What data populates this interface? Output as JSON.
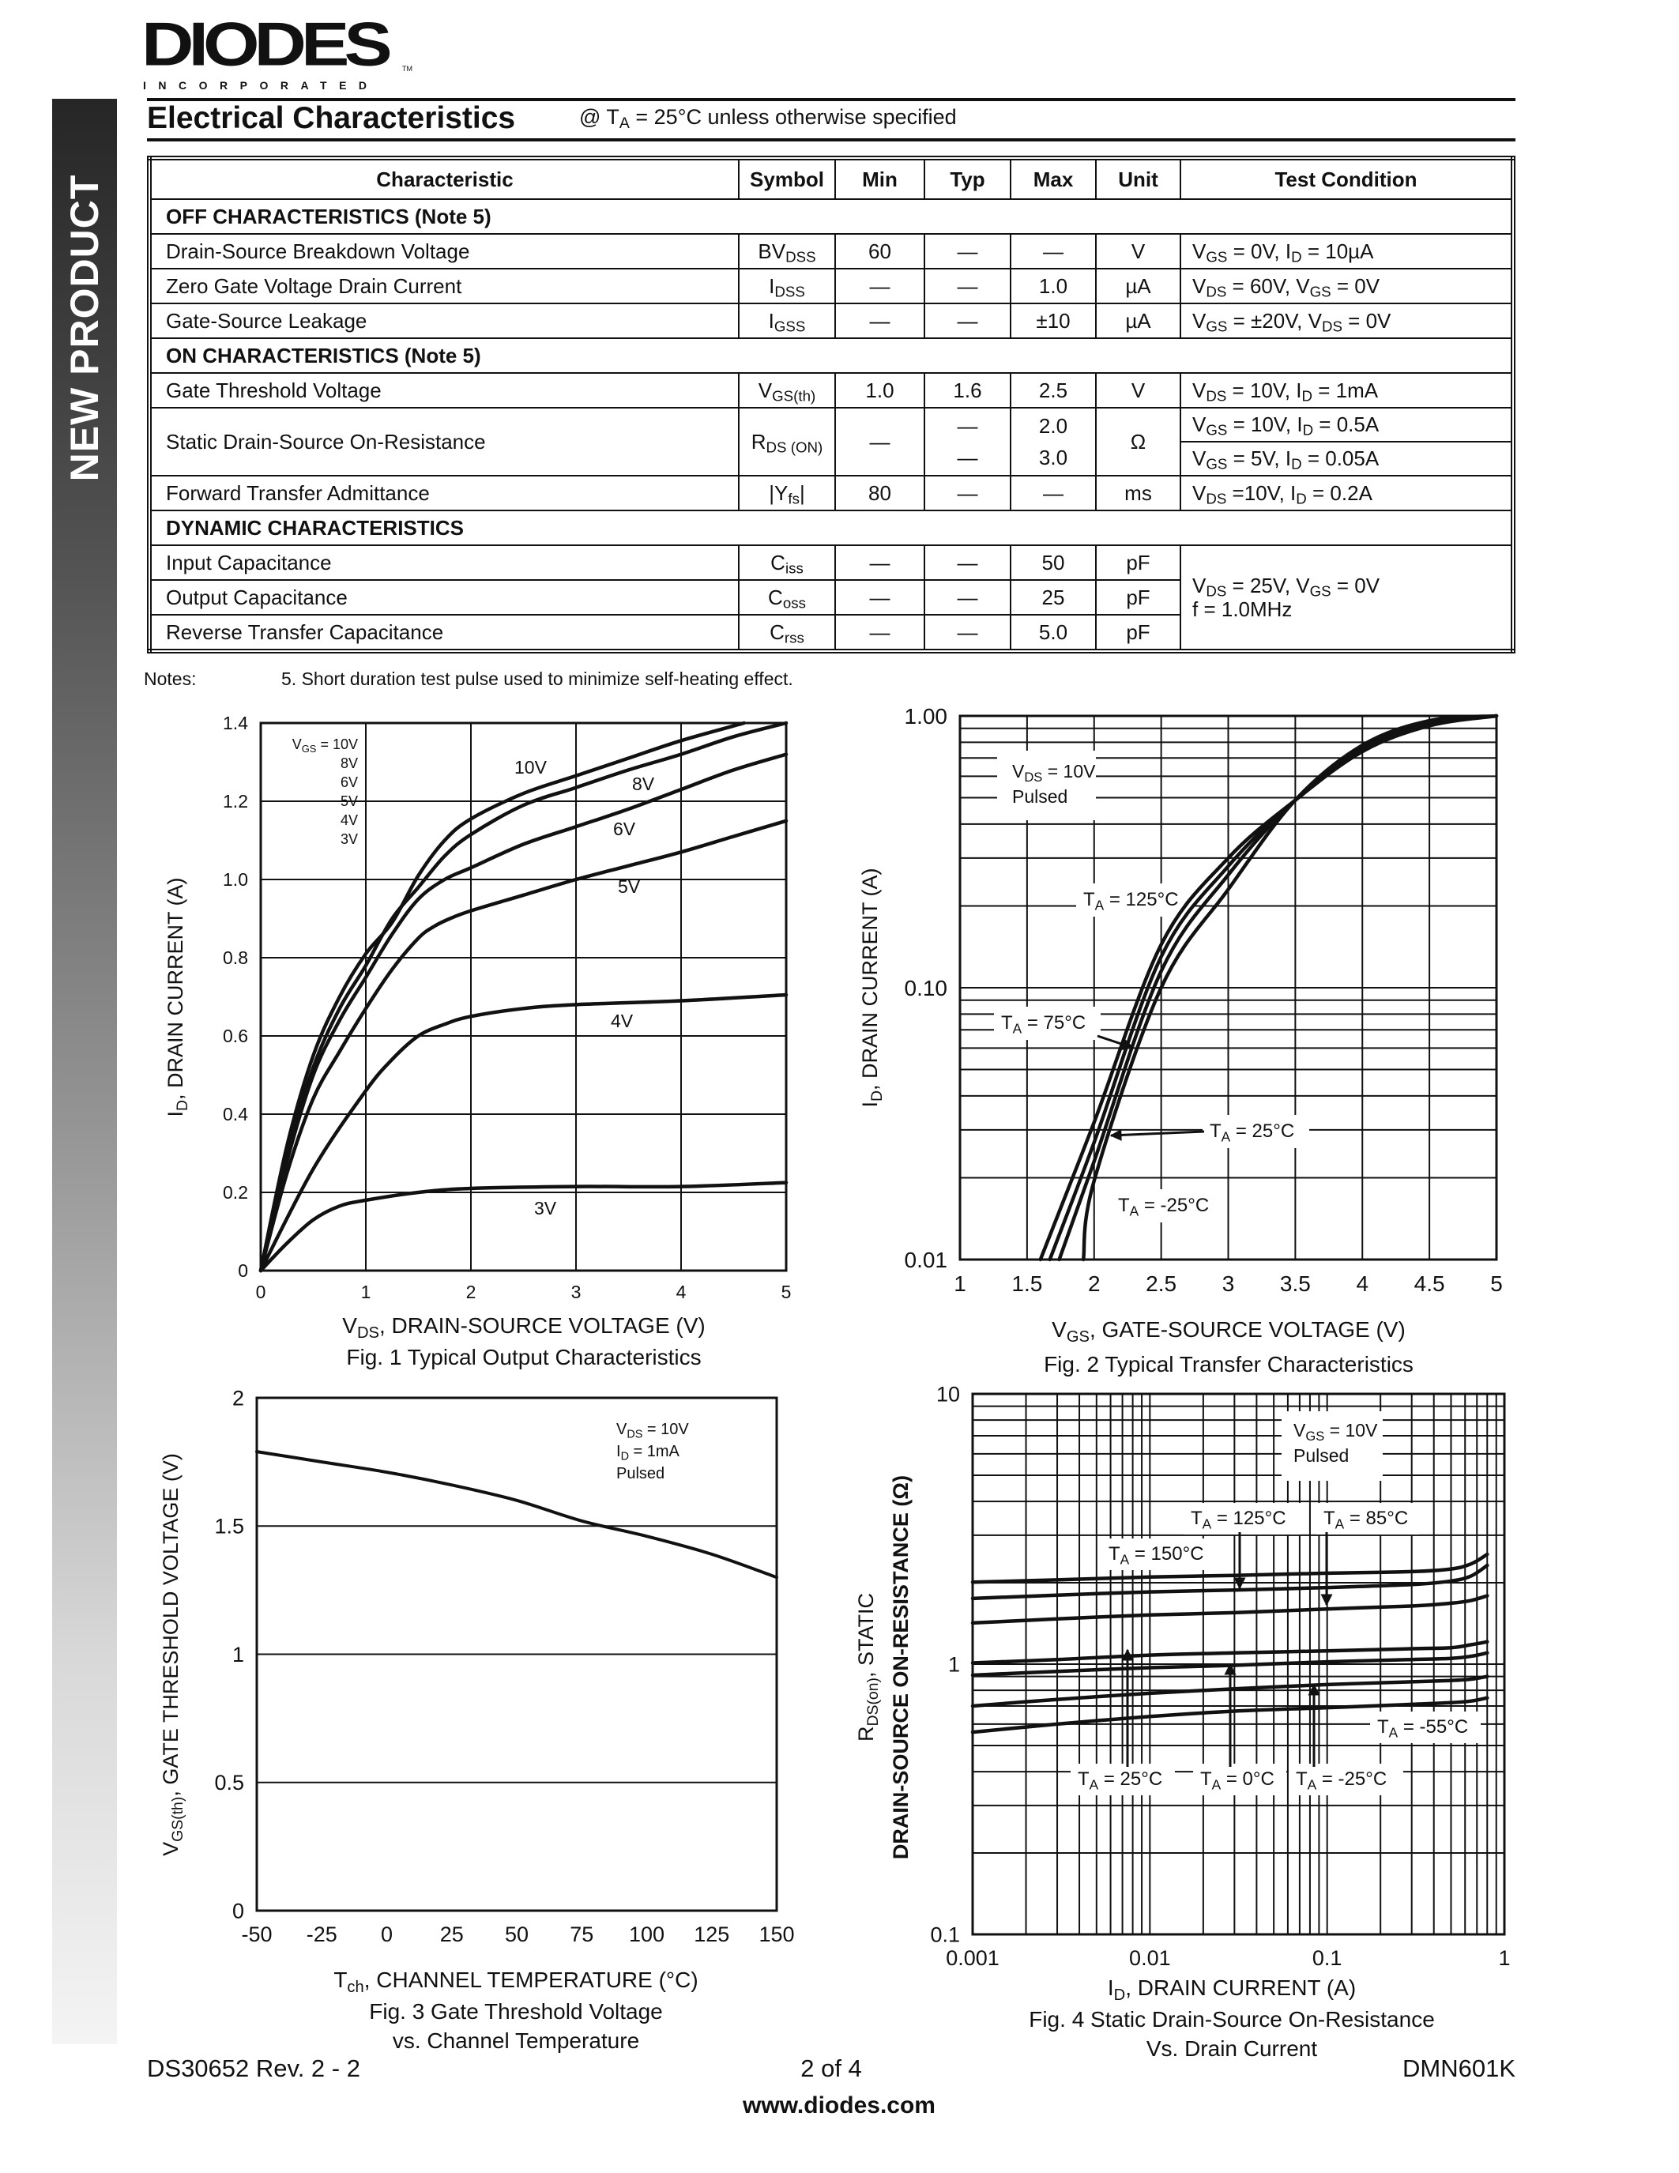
{
  "logo": {
    "name": "DIODES",
    "sub": "INCORPORATED",
    "tm": "TM"
  },
  "sidebar": {
    "label": "NEW PRODUCT"
  },
  "header": {
    "title": "Electrical Characteristics",
    "subtitle": [
      "@ T",
      {
        "sub": "A"
      },
      " = 25°C unless otherwise specified"
    ]
  },
  "table": {
    "columns": [
      "Characteristic",
      "Symbol",
      "Min",
      "Typ",
      "Max",
      "Unit",
      "Test Condition"
    ],
    "rows": [
      {
        "section": "OFF CHARACTERISTICS (Note 5)"
      },
      {
        "characteristic": "Drain-Source Breakdown Voltage",
        "symbol": [
          "BV",
          {
            "sub": "DSS"
          }
        ],
        "min": "60",
        "typ": "—",
        "max": "—",
        "unit": "V",
        "condition": [
          [
            "V",
            {
              "sub": "GS"
            },
            " = 0V, I",
            {
              "sub": "D"
            },
            " = 10µA"
          ]
        ]
      },
      {
        "characteristic": "Zero Gate Voltage Drain Current",
        "symbol": [
          "I",
          {
            "sub": "DSS"
          }
        ],
        "min": "—",
        "typ": "—",
        "max": "1.0",
        "unit": "µA",
        "condition": [
          [
            "V",
            {
              "sub": "DS"
            },
            " = 60V, V",
            {
              "sub": "GS"
            },
            " = 0V"
          ]
        ]
      },
      {
        "characteristic": "Gate-Source Leakage",
        "symbol": [
          "I",
          {
            "sub": "GSS"
          }
        ],
        "min": "—",
        "typ": "—",
        "max": "±10",
        "unit": "µA",
        "condition": [
          [
            "V",
            {
              "sub": "GS"
            },
            " = ±20V, V",
            {
              "sub": "DS"
            },
            " = 0V"
          ]
        ]
      },
      {
        "section": "ON CHARACTERISTICS (Note 5)"
      },
      {
        "characteristic": "Gate Threshold Voltage",
        "symbol": [
          "V",
          {
            "sub": "GS(th)"
          }
        ],
        "min": "1.0",
        "typ": "1.6",
        "max": "2.5",
        "unit": "V",
        "condition": [
          [
            "V",
            {
              "sub": "DS"
            },
            " = 10V, I",
            {
              "sub": "D"
            },
            " = 1mA"
          ]
        ]
      },
      {
        "characteristic": "Static Drain-Source On-Resistance",
        "symbol": [
          "R",
          {
            "sub": "DS (ON)"
          }
        ],
        "min": "—",
        "typ": [
          "—",
          "—"
        ],
        "max": [
          "2.0",
          "3.0"
        ],
        "unit": "Ω",
        "condition_divided": true,
        "condition": [
          [
            "V",
            {
              "sub": "GS"
            },
            " = 10V, I",
            {
              "sub": "D"
            },
            " = 0.5A"
          ],
          [
            "V",
            {
              "sub": "GS"
            },
            " = 5V, I",
            {
              "sub": "D"
            },
            " = 0.05A"
          ]
        ]
      },
      {
        "characteristic": "Forward Transfer Admittance",
        "symbol": [
          "|Y",
          {
            "sub": "fs"
          },
          "|"
        ],
        "min": "80",
        "typ": "—",
        "max": "—",
        "unit": "ms",
        "condition": [
          [
            "V",
            {
              "sub": "DS"
            },
            " =10V, I",
            {
              "sub": "D"
            },
            " = 0.2A"
          ]
        ]
      },
      {
        "section": "DYNAMIC CHARACTERISTICS"
      },
      {
        "characteristic": "Input Capacitance",
        "symbol": [
          "C",
          {
            "sub": "iss"
          }
        ],
        "min": "—",
        "typ": "—",
        "max": "50",
        "unit": "pF",
        "condition_rowspan": 3,
        "condition": [
          [
            "V",
            {
              "sub": "DS"
            },
            " = 25V, V",
            {
              "sub": "GS"
            },
            " = 0V"
          ],
          [
            "f = 1.0MHz"
          ]
        ]
      },
      {
        "characteristic": "Output Capacitance",
        "symbol": [
          "C",
          {
            "sub": "oss"
          }
        ],
        "min": "—",
        "typ": "—",
        "max": "25",
        "unit": "pF"
      },
      {
        "characteristic": "Reverse Transfer Capacitance",
        "symbol": [
          "C",
          {
            "sub": "rss"
          }
        ],
        "min": "—",
        "typ": "—",
        "max": "5.0",
        "unit": "pF"
      }
    ]
  },
  "notes": {
    "label": "Notes:",
    "items": [
      "5.  Short duration test pulse used to minimize self-heating effect."
    ]
  },
  "chart_data": [
    {
      "type": "line",
      "title": [
        "Fig. 1  Typical Output Characteristics"
      ],
      "xlabel": [
        "V",
        {
          "sub": "DS"
        },
        ", DRAIN-SOURCE VOLTAGE (V)"
      ],
      "ylabel": [
        [
          "I",
          {
            "sub": "D"
          },
          ", DRAIN CURRENT (A)"
        ]
      ],
      "xscale": "linear",
      "yscale": "linear",
      "xlim": [
        0,
        5
      ],
      "ylim": [
        0,
        1.4
      ],
      "grid": true,
      "xticks": [
        "0",
        "1",
        "2",
        "3",
        "4",
        "5"
      ],
      "yticks": [
        "0",
        "0.2",
        "0.4",
        "0.6",
        "0.8",
        "1.0",
        "1.2",
        "1.4"
      ],
      "legend": [
        [
          "V",
          {
            "sub": "GS"
          },
          " = 10V"
        ],
        [
          "8V"
        ],
        [
          "6V"
        ],
        [
          "5V"
        ],
        [
          "4V"
        ],
        [
          "3V"
        ]
      ],
      "legend_position": "top-left",
      "series": [
        {
          "name": "10V",
          "x": [
            0,
            0.25,
            0.5,
            0.75,
            1,
            1.25,
            1.5,
            1.75,
            2,
            2.5,
            3,
            3.5,
            4,
            4.6
          ],
          "y": [
            0,
            0.32,
            0.55,
            0.7,
            0.81,
            0.89,
            1.01,
            1.1,
            1.155,
            1.22,
            1.265,
            1.31,
            1.355,
            1.4
          ]
        },
        {
          "name": "8V",
          "x": [
            0,
            0.25,
            0.5,
            0.75,
            1,
            1.25,
            1.5,
            1.75,
            2,
            2.5,
            3,
            3.5,
            4,
            4.5,
            5
          ],
          "y": [
            0,
            0.3,
            0.52,
            0.67,
            0.78,
            0.9,
            0.98,
            1.06,
            1.115,
            1.19,
            1.235,
            1.28,
            1.32,
            1.365,
            1.4
          ]
        },
        {
          "name": "6V",
          "x": [
            0,
            0.25,
            0.5,
            0.75,
            1,
            1.25,
            1.5,
            1.75,
            2,
            2.5,
            3,
            3.5,
            4,
            4.5,
            5
          ],
          "y": [
            0,
            0.28,
            0.5,
            0.64,
            0.75,
            0.86,
            0.95,
            1.0,
            1.03,
            1.09,
            1.135,
            1.18,
            1.23,
            1.28,
            1.32
          ]
        },
        {
          "name": "5V",
          "x": [
            0,
            0.25,
            0.5,
            0.75,
            1,
            1.25,
            1.5,
            1.65,
            1.8,
            2,
            2.5,
            3,
            3.5,
            4,
            4.5,
            5
          ],
          "y": [
            0,
            0.25,
            0.44,
            0.56,
            0.67,
            0.77,
            0.85,
            0.88,
            0.9,
            0.92,
            0.96,
            1.0,
            1.035,
            1.07,
            1.11,
            1.15
          ]
        },
        {
          "name": "4V",
          "x": [
            0,
            0.5,
            1,
            1.25,
            1.5,
            1.75,
            2,
            2.5,
            3,
            4,
            5
          ],
          "y": [
            0,
            0.26,
            0.46,
            0.54,
            0.6,
            0.63,
            0.65,
            0.67,
            0.68,
            0.69,
            0.705
          ]
        },
        {
          "name": "3V",
          "x": [
            0,
            0.25,
            0.5,
            0.75,
            1,
            1.5,
            2,
            3,
            4,
            5
          ],
          "y": [
            0,
            0.07,
            0.13,
            0.165,
            0.18,
            0.2,
            0.21,
            0.215,
            0.215,
            0.225
          ]
        }
      ]
    },
    {
      "type": "line",
      "title": [
        "Fig. 2  Typical Transfer Characteristics"
      ],
      "xlabel": [
        "V",
        {
          "sub": "GS"
        },
        ", GATE-SOURCE VOLTAGE (V)"
      ],
      "ylabel": [
        [
          "I",
          {
            "sub": "D"
          },
          ", DRAIN CURRENT (A)"
        ]
      ],
      "xscale": "linear",
      "yscale": "log",
      "xlim": [
        1,
        5
      ],
      "ylim": [
        0.01,
        1
      ],
      "grid": true,
      "xticks": [
        "1",
        "1.5",
        "2",
        "2.5",
        "3",
        "3.5",
        "4",
        "4.5",
        "5"
      ],
      "yticks": [
        "0.01",
        "0.10",
        "1.00"
      ],
      "annotations": [
        [
          [
            "V",
            {
              "sub": "DS"
            },
            " = 10V"
          ],
          [
            "Pulsed"
          ]
        ],
        [
          [
            "T",
            {
              "sub": "A"
            },
            " = 125°C"
          ]
        ],
        [
          [
            "T",
            {
              "sub": "A"
            },
            " = 75°C"
          ]
        ],
        [
          [
            "T",
            {
              "sub": "A"
            },
            " = 25°C"
          ]
        ],
        [
          [
            "T",
            {
              "sub": "A"
            },
            " = -25°C"
          ]
        ]
      ],
      "series": [
        {
          "name": "TA = 125°C",
          "x": [
            1.6,
            2,
            2.5,
            3,
            3.5,
            4,
            4.5,
            5
          ],
          "y": [
            0.01,
            0.032,
            0.144,
            0.3,
            0.49,
            0.74,
            0.93,
            1.0
          ]
        },
        {
          "name": "TA = 75°C",
          "x": [
            1.67,
            2,
            2.5,
            3,
            3.5,
            4,
            4.5,
            5
          ],
          "y": [
            0.01,
            0.027,
            0.13,
            0.28,
            0.49,
            0.74,
            0.92,
            1.0
          ]
        },
        {
          "name": "TA = 25°C",
          "x": [
            1.74,
            2,
            2.5,
            3,
            3.5,
            4,
            4.5,
            5
          ],
          "y": [
            0.01,
            0.023,
            0.115,
            0.26,
            0.49,
            0.76,
            0.94,
            1.0
          ]
        },
        {
          "name": "TA = -25°C",
          "x": [
            1.92,
            2,
            2.5,
            3,
            3.5,
            4,
            4.5,
            5
          ],
          "y": [
            0.01,
            0.0195,
            0.1,
            0.23,
            0.49,
            0.78,
            0.96,
            1.0
          ]
        }
      ]
    },
    {
      "type": "line",
      "title": [
        "Fig. 3  Gate Threshold Voltage",
        "vs. Channel Temperature"
      ],
      "xlabel": [
        "T",
        {
          "sub": "ch"
        },
        ", CHANNEL TEMPERATURE (°C)"
      ],
      "ylabel": [
        [
          "V",
          {
            "sub": "GS(th)"
          },
          ", GATE THRESHOLD VOLTAGE (V)"
        ]
      ],
      "xscale": "linear",
      "yscale": "linear",
      "xlim": [
        -50,
        150
      ],
      "ylim": [
        0,
        2
      ],
      "grid": "horizontal",
      "xticks": [
        "-50",
        "-25",
        "0",
        "25",
        "50",
        "75",
        "100",
        "125",
        "150"
      ],
      "yticks": [
        "0",
        "0.5",
        "1",
        "1.5",
        "2"
      ],
      "annotations": [
        [
          [
            "V",
            {
              "sub": "DS"
            },
            " = 10V"
          ],
          [
            "I",
            {
              "sub": "D"
            },
            " = 1mA"
          ],
          [
            "Pulsed"
          ]
        ]
      ],
      "series": [
        {
          "x": [
            -50,
            -25,
            0,
            25,
            50,
            75,
            100,
            125,
            150
          ],
          "y": [
            1.79,
            1.75,
            1.71,
            1.66,
            1.6,
            1.52,
            1.46,
            1.39,
            1.3
          ]
        }
      ]
    },
    {
      "type": "line",
      "title": [
        "Fig. 4 Static Drain-Source On-Resistance",
        "Vs. Drain Current"
      ],
      "xlabel": [
        "I",
        {
          "sub": "D"
        },
        ", DRAIN CURRENT (A)"
      ],
      "ylabel": [
        [
          "R",
          {
            "sub": "DS(on)"
          },
          ", STATIC"
        ],
        [
          "DRAIN-SOURCE ON-RESISTANCE (Ω)"
        ]
      ],
      "xscale": "log",
      "yscale": "log",
      "xlim": [
        0.001,
        1
      ],
      "ylim": [
        0.1,
        10
      ],
      "grid": true,
      "xticks": [
        "0.001",
        "0.01",
        "0.1",
        "1"
      ],
      "yticks": [
        "0.1",
        "1",
        "10"
      ],
      "annotations": [
        [
          [
            "V",
            {
              "sub": "GS"
            },
            " = 10V"
          ],
          [
            "Pulsed"
          ]
        ],
        [
          [
            "T",
            {
              "sub": "A"
            },
            " = 125°C"
          ]
        ],
        [
          [
            "T",
            {
              "sub": "A"
            },
            " = 85°C"
          ]
        ],
        [
          [
            "T",
            {
              "sub": "A"
            },
            " = 150°C"
          ]
        ],
        [
          [
            "T",
            {
              "sub": "A"
            },
            " = -55°C"
          ]
        ],
        [
          [
            "T",
            {
              "sub": "A"
            },
            " = 25°C"
          ]
        ],
        [
          [
            "T",
            {
              "sub": "A"
            },
            " = 0°C"
          ]
        ],
        [
          [
            "T",
            {
              "sub": "A"
            },
            " = -25°C"
          ]
        ]
      ],
      "series": [
        {
          "name": "TA = 150°C",
          "x": [
            0.001,
            0.003,
            0.01,
            0.03,
            0.1,
            0.3,
            0.5,
            0.65,
            0.8
          ],
          "y": [
            2.01,
            2.05,
            2.1,
            2.13,
            2.17,
            2.2,
            2.25,
            2.35,
            2.55
          ]
        },
        {
          "name": "TA = 125°C",
          "x": [
            0.001,
            0.003,
            0.01,
            0.03,
            0.1,
            0.3,
            0.5,
            0.65,
            0.8
          ],
          "y": [
            1.75,
            1.8,
            1.85,
            1.88,
            1.92,
            1.97,
            2.03,
            2.12,
            2.32
          ]
        },
        {
          "name": "TA = 85°C",
          "x": [
            0.001,
            0.003,
            0.01,
            0.03,
            0.1,
            0.3,
            0.5,
            0.65,
            0.8
          ],
          "y": [
            1.42,
            1.47,
            1.52,
            1.55,
            1.6,
            1.64,
            1.68,
            1.72,
            1.79
          ]
        },
        {
          "name": "TA = 25°C",
          "x": [
            0.001,
            0.003,
            0.01,
            0.03,
            0.1,
            0.3,
            0.5,
            0.65,
            0.8
          ],
          "y": [
            1.01,
            1.04,
            1.08,
            1.1,
            1.12,
            1.14,
            1.15,
            1.18,
            1.21
          ]
        },
        {
          "name": "TA = 0°C",
          "x": [
            0.001,
            0.003,
            0.01,
            0.03,
            0.1,
            0.3,
            0.5,
            0.65,
            0.8
          ],
          "y": [
            0.91,
            0.94,
            0.97,
            0.99,
            1.02,
            1.04,
            1.05,
            1.07,
            1.1
          ]
        },
        {
          "name": "TA = -25°C",
          "x": [
            0.001,
            0.003,
            0.01,
            0.03,
            0.1,
            0.3,
            0.5,
            0.65,
            0.8
          ],
          "y": [
            0.7,
            0.74,
            0.78,
            0.81,
            0.84,
            0.86,
            0.87,
            0.88,
            0.9
          ]
        },
        {
          "name": "TA = -55°C",
          "x": [
            0.001,
            0.003,
            0.01,
            0.03,
            0.1,
            0.3,
            0.5,
            0.65,
            0.8
          ],
          "y": [
            0.56,
            0.6,
            0.64,
            0.67,
            0.69,
            0.71,
            0.72,
            0.73,
            0.75
          ]
        }
      ]
    }
  ],
  "footer": {
    "doc": "DS30652 Rev. 2 - 2",
    "page": "2 of 4",
    "part": "DMN601K",
    "url": "www.diodes.com"
  }
}
